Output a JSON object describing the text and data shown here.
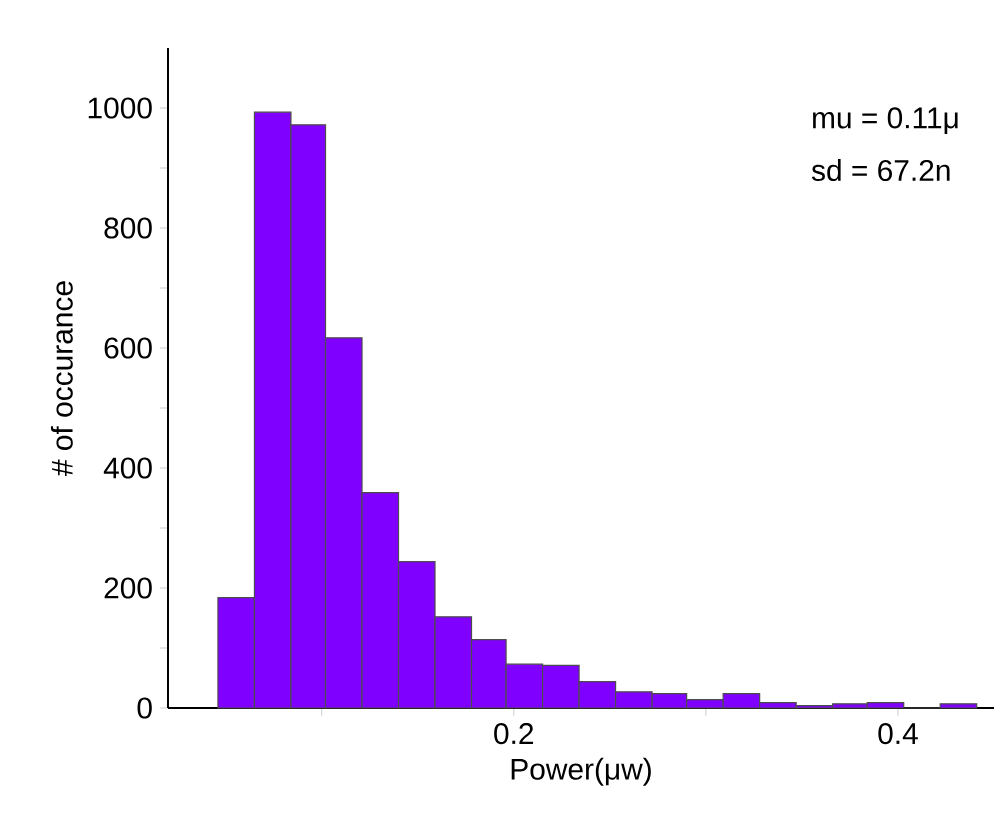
{
  "chart_data": {
    "type": "histogram",
    "xlabel": "Power(μw)",
    "ylabel": "# of occurance",
    "bins": [
      0.046,
      0.065,
      0.084,
      0.102,
      0.121,
      0.14,
      0.159,
      0.178,
      0.196,
      0.215,
      0.234,
      0.253,
      0.272,
      0.29,
      0.309,
      0.328,
      0.347,
      0.366,
      0.384,
      0.403,
      0.422,
      0.441
    ],
    "values": [
      184,
      993,
      972,
      617,
      359,
      244,
      152,
      114,
      73,
      71,
      44,
      27,
      24,
      14,
      24,
      9,
      4,
      7,
      9,
      0,
      7
    ],
    "color": "#8000ff",
    "xlim": [
      0.02,
      0.45
    ],
    "xticks": [
      {
        "value": 0.1,
        "label": null
      },
      0.2,
      {
        "value": 0.3,
        "label": null
      },
      0.4
    ],
    "ylim": [
      0,
      1100
    ],
    "yticks": [
      0,
      {
        "value": 100,
        "label": null
      },
      200,
      {
        "value": 300,
        "label": null
      },
      400,
      {
        "value": 500,
        "label": null
      },
      600,
      {
        "value": 700,
        "label": null
      },
      800,
      {
        "value": 900,
        "label": null
      },
      1000
    ],
    "annotations": [
      "mu = 0.11μ",
      "sd = 67.2n"
    ]
  }
}
